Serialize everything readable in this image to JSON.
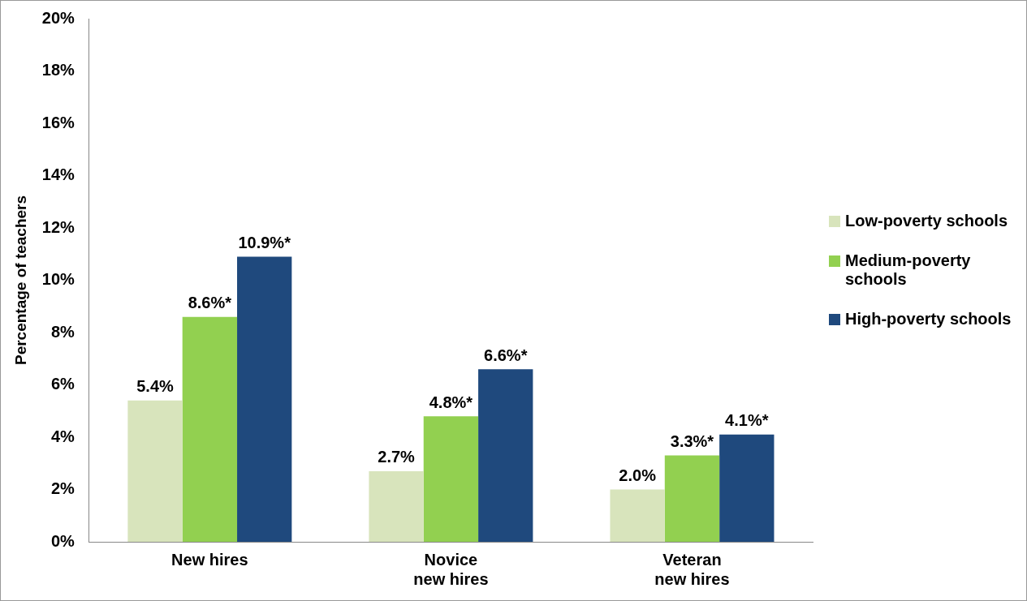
{
  "chart_data": {
    "type": "bar",
    "ylabel": "Percentage of teachers",
    "categories": [
      "New hires",
      "Novice\nnew hires",
      "Veteran\nnew hires"
    ],
    "series": [
      {
        "name": "Low-poverty schools",
        "color": "#d8e4bc",
        "values": [
          5.4,
          2.7,
          2.0
        ],
        "value_labels": [
          "5.4%",
          "2.7%",
          "2.0%"
        ]
      },
      {
        "name": "Medium-poverty schools",
        "color": "#92d050",
        "values": [
          8.6,
          4.8,
          3.3
        ],
        "value_labels": [
          "8.6%*",
          "4.8%*",
          "3.3%*"
        ]
      },
      {
        "name": "High-poverty schools",
        "color": "#1f497d",
        "values": [
          10.9,
          6.6,
          4.1
        ],
        "value_labels": [
          "10.9%*",
          "6.6%*",
          "4.1%*"
        ]
      }
    ],
    "ylim": [
      0,
      20
    ],
    "yticks": [
      {
        "value": 0,
        "label": "0%"
      },
      {
        "value": 2,
        "label": "2%"
      },
      {
        "value": 4,
        "label": "4%"
      },
      {
        "value": 6,
        "label": "6%"
      },
      {
        "value": 8,
        "label": "8%"
      },
      {
        "value": 10,
        "label": "10%"
      },
      {
        "value": 12,
        "label": "12%"
      },
      {
        "value": 14,
        "label": "14%"
      },
      {
        "value": 16,
        "label": "16%"
      },
      {
        "value": 18,
        "label": "18%"
      },
      {
        "value": 20,
        "label": "20%"
      }
    ],
    "grid": false,
    "legend": "right"
  }
}
